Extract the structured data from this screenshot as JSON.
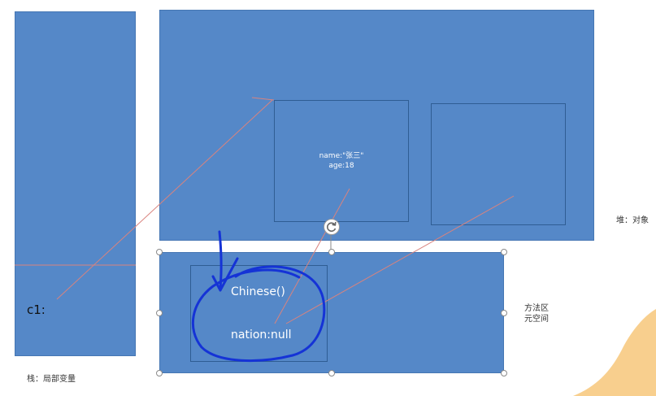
{
  "stack": {
    "variable": "c1:",
    "caption": "栈：局部变量"
  },
  "heap": {
    "caption": "堆：对象",
    "object": {
      "name_field": "name:\"张三\"",
      "age_field": "age:18"
    }
  },
  "method_area": {
    "caption_line1": "方法区",
    "caption_line2": "元空间",
    "constructor": "Chinese()",
    "static_field": "nation:null"
  },
  "colors": {
    "block_fill": "#5588c8",
    "reference_line": "#d9837e",
    "annotation_ink": "#1533d6",
    "corner_accent": "#f7c77a"
  },
  "icons": [
    "rotate-icon",
    "selection-handle"
  ]
}
